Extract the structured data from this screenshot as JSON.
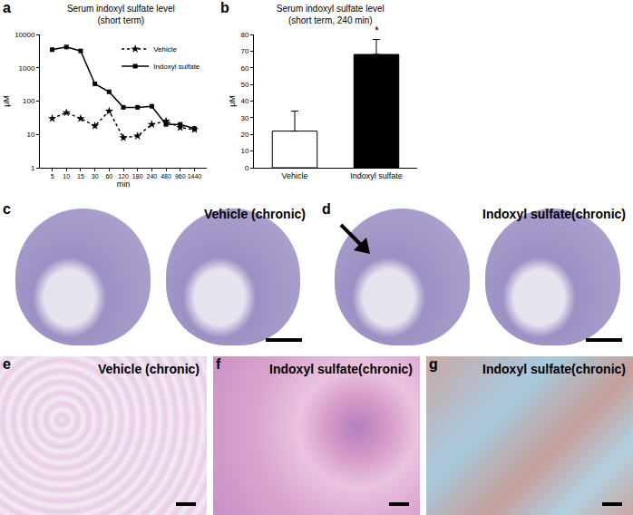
{
  "chart_data": [
    {
      "panel": "a",
      "type": "line",
      "title": "Serum indoxyl sulfate level\n(short term)",
      "x_label": "min",
      "y_label": "μM",
      "log": "y",
      "categories": [
        "5",
        "10",
        "15",
        "30",
        "60",
        "120",
        "180",
        "240",
        "480",
        "960",
        "1440"
      ],
      "series": [
        {
          "name": "Vehicle",
          "color": "#000000",
          "marker": "star",
          "line_style": "dotted",
          "values": [
            30,
            45,
            30,
            18,
            50,
            8,
            9,
            20,
            25,
            16,
            14
          ]
        },
        {
          "name": "Indoxyl sulfate",
          "color": "#000000",
          "marker": "square",
          "line_style": "solid",
          "values": [
            3500,
            4200,
            3200,
            330,
            190,
            65,
            65,
            70,
            20,
            20,
            15
          ]
        }
      ],
      "ylim": [
        1,
        10000
      ],
      "yticks": [
        1,
        10,
        100,
        1000,
        10000
      ],
      "legend": "upper right",
      "grid": false
    },
    {
      "panel": "b",
      "type": "bar",
      "title": "Serum indoxyl sulfate level\n(short term, 240 min)",
      "y_label": "μM",
      "categories": [
        "Vehicle",
        "Indoxyl sulfate"
      ],
      "values": [
        22,
        68
      ],
      "errors": [
        12,
        9
      ],
      "colors": [
        "#ffffff",
        "#000000"
      ],
      "ylim": [
        0,
        80
      ],
      "yticks": [
        0,
        10,
        20,
        30,
        40,
        50,
        60,
        70,
        80
      ],
      "annotations": [
        {
          "category": "Indoxyl sulfate",
          "text": "*"
        }
      ],
      "grid": false
    }
  ],
  "image_panels": [
    {
      "panel": "c",
      "label": "Vehicle (chronic)"
    },
    {
      "panel": "d",
      "label": "Indoxyl sulfate(chronic)"
    },
    {
      "panel": "e",
      "label": "Vehicle (chronic)"
    },
    {
      "panel": "f",
      "label": "Indoxyl sulfate(chronic)"
    },
    {
      "panel": "g",
      "label": "Indoxyl sulfate(chronic)"
    }
  ]
}
